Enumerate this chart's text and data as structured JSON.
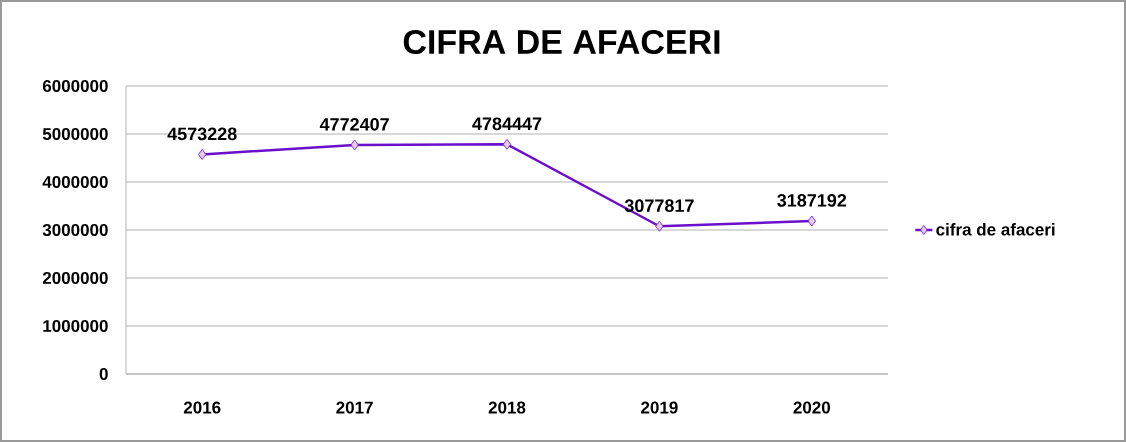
{
  "chart_data": {
    "type": "line",
    "title": "CIFRA DE AFACERI",
    "categories": [
      "2016",
      "2017",
      "2018",
      "2019",
      "2020"
    ],
    "series": [
      {
        "name": "cifra de afaceri",
        "color": "#6a0fcc",
        "values": [
          4573228,
          4772407,
          4784447,
          3077817,
          3187192
        ]
      }
    ],
    "ylim": [
      0,
      6000000
    ],
    "yticks": [
      0,
      1000000,
      2000000,
      3000000,
      4000000,
      5000000,
      6000000
    ],
    "grid": "y",
    "legend": "right",
    "marker": "diamond",
    "line_style": "solid",
    "data_labels": true
  }
}
